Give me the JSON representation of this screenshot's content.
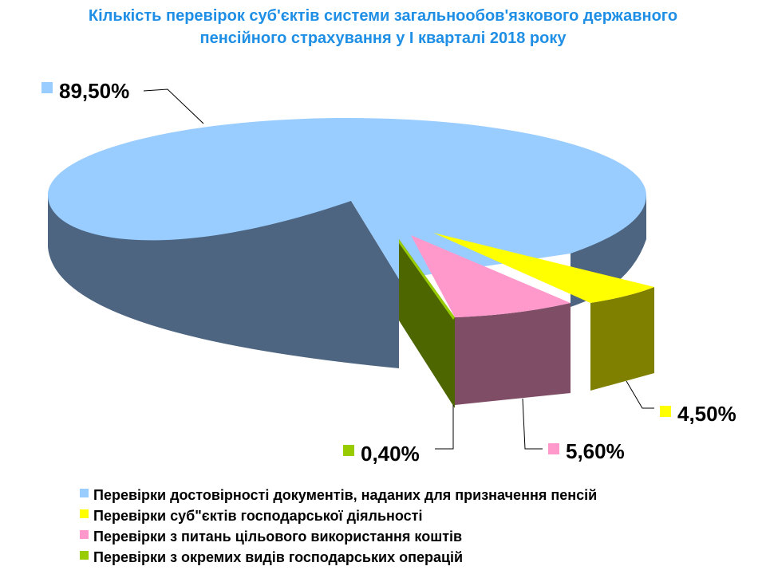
{
  "chart_data": {
    "type": "pie",
    "title_line1": "Кількість перевірок суб'єктів системи загальнообов'язкового державного",
    "title_line2": "пенсійного страхування у І кварталі 2018 року",
    "legend_placement": "bottom",
    "slices": [
      {
        "label": "Перевірки достовірності документів, наданих для призначення пенсій",
        "value": 89.5,
        "value_label": "89,50%",
        "top_color": "#99ccff",
        "side_color": "#4d6580"
      },
      {
        "label": "Перевірки суб\"єктів господарської діяльності",
        "value": 4.5,
        "value_label": "4,50%",
        "top_color": "#ffff00",
        "side_color": "#808000"
      },
      {
        "label": "Перевірки з питань цільового використання коштів",
        "value": 5.6,
        "value_label": "5,60%",
        "top_color": "#ff99cc",
        "side_color": "#804d66"
      },
      {
        "label": "Перевірки з окремих видів господарських операцій",
        "value": 0.4,
        "value_label": "0,40%",
        "top_color": "#99cc00",
        "side_color": "#4d6600"
      }
    ]
  }
}
